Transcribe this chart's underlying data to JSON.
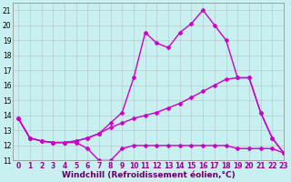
{
  "title": "",
  "xlabel": "Windchill (Refroidissement éolien,°C)",
  "ylabel": "",
  "bg_color": "#c8f0f0",
  "line_color": "#cc00cc",
  "grid_color": "#b0b0b0",
  "xlim": [
    -0.5,
    23
  ],
  "ylim": [
    11,
    21.5
  ],
  "xticks": [
    0,
    1,
    2,
    3,
    4,
    5,
    6,
    7,
    8,
    9,
    10,
    11,
    12,
    13,
    14,
    15,
    16,
    17,
    18,
    19,
    20,
    21,
    22,
    23
  ],
  "yticks": [
    11,
    12,
    13,
    14,
    15,
    16,
    17,
    18,
    19,
    20,
    21
  ],
  "line1_x": [
    0,
    1,
    2,
    3,
    4,
    5,
    6,
    7,
    8,
    9,
    10,
    11,
    12,
    13,
    14,
    15,
    16,
    17,
    18,
    19,
    20,
    21,
    22,
    23
  ],
  "line1_y": [
    13.8,
    12.5,
    12.3,
    12.2,
    12.2,
    12.2,
    11.8,
    11.0,
    11.0,
    11.8,
    12.0,
    12.0,
    12.0,
    12.0,
    12.0,
    12.0,
    12.0,
    12.0,
    12.0,
    11.8,
    11.8,
    11.8,
    11.8,
    11.5
  ],
  "line2_x": [
    0,
    1,
    2,
    3,
    4,
    5,
    6,
    7,
    8,
    9,
    10,
    11,
    12,
    13,
    14,
    15,
    16,
    17,
    18,
    19,
    20,
    21,
    22,
    23
  ],
  "line2_y": [
    13.8,
    12.5,
    12.3,
    12.2,
    12.2,
    12.3,
    12.5,
    12.8,
    13.2,
    13.5,
    13.8,
    14.0,
    14.2,
    14.5,
    14.8,
    15.2,
    15.6,
    16.0,
    16.4,
    16.5,
    16.5,
    14.2,
    12.5,
    11.5
  ],
  "line3_x": [
    0,
    1,
    2,
    3,
    4,
    5,
    6,
    7,
    8,
    9,
    10,
    11,
    12,
    13,
    14,
    15,
    16,
    17,
    18,
    19,
    20,
    21,
    22,
    23
  ],
  "line3_y": [
    13.8,
    12.5,
    12.3,
    12.2,
    12.2,
    12.3,
    12.5,
    12.8,
    13.5,
    14.2,
    16.5,
    19.5,
    18.8,
    18.5,
    19.5,
    20.1,
    21.0,
    20.0,
    19.0,
    16.5,
    16.5,
    14.2,
    12.5,
    11.5
  ],
  "marker": "D",
  "marker_size": 2,
  "linewidth": 1.0,
  "xlabel_fontsize": 6.5,
  "tick_fontsize": 5.5
}
